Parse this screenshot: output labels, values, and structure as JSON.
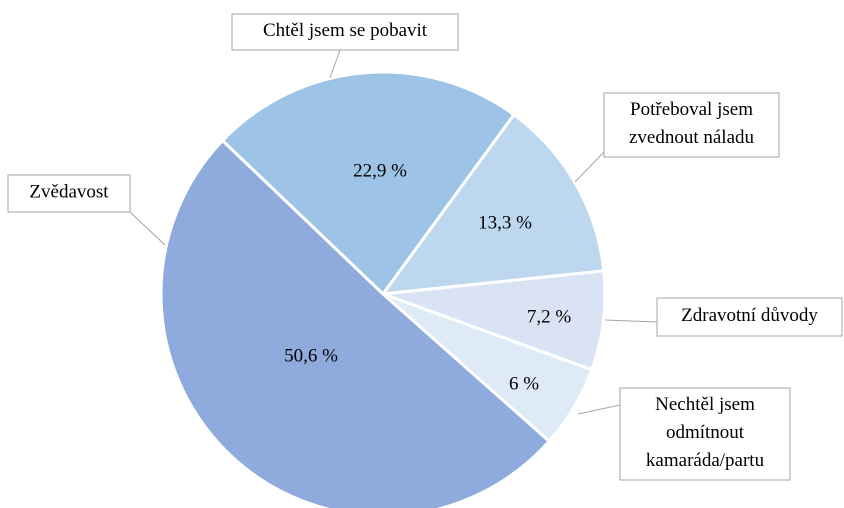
{
  "chart_data": {
    "type": "pie",
    "categories": [
      "Chtěl jsem se pobavit",
      "Potřeboval jsem\nzvednout náladu",
      "Zdravotní důvody",
      "Nechtěl jsem\nodmítnout\nkamaráda/partu",
      "Zvědavost"
    ],
    "values": [
      22.9,
      13.3,
      7.2,
      6,
      50.6
    ],
    "value_labels": [
      "22,9 %",
      "13,3 %",
      "7,2 %",
      "6 %",
      "50,6 %"
    ],
    "colors": [
      "#9dc3e6",
      "#bdd7ee",
      "#dae3f3",
      "#deebf7",
      "#8faadc"
    ]
  }
}
